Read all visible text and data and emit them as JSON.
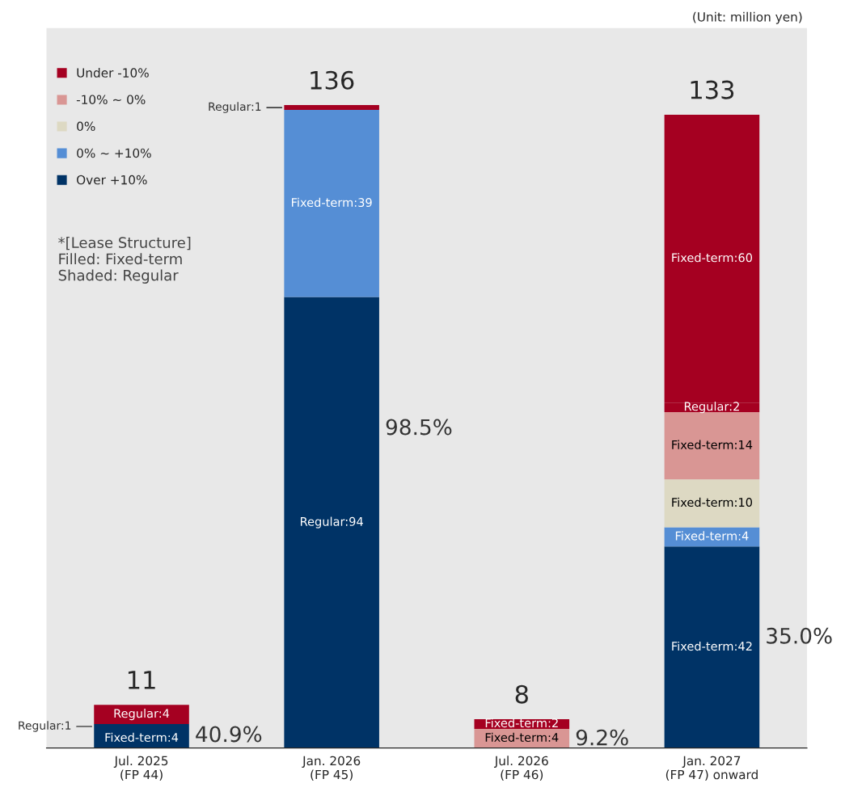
{
  "chart_data": {
    "type": "bar",
    "stacked": true,
    "categories": [
      "Jul. 2025\n(FP 44)",
      "Jan. 2026\n(FP 45)",
      "Jul. 2026\n(FP 46)",
      "Jan. 2027\n(FP 47) onward"
    ],
    "series": [
      {
        "name": "Over +10%",
        "color": "#003366",
        "values": [
          4,
          0,
          0,
          42
        ],
        "value_labels": [
          "Fixed-term:4",
          null,
          null,
          "Fixed-term:42"
        ]
      },
      {
        "color": "#003366",
        "values": [
          1,
          94,
          0,
          0
        ],
        "value_labels": [
          "Regular:1",
          "Regular:94",
          null,
          null
        ]
      },
      {
        "name": "0% ~ +10%",
        "color": "#558ed5",
        "values": [
          0,
          39,
          0,
          4
        ],
        "value_labels": [
          null,
          "Fixed-term:39",
          null,
          "Fixed-term:4"
        ]
      },
      {
        "name": "0%",
        "color": "#ddd9c3",
        "values": [
          0,
          0,
          0,
          10
        ],
        "value_labels": [
          null,
          null,
          null,
          "Fixed-term:10"
        ]
      },
      {
        "name": "-10% ~ 0%",
        "color": "#d99694",
        "values": [
          0,
          0,
          4,
          14
        ],
        "value_labels": [
          null,
          null,
          "Fixed-term:4",
          "Fixed-term:14"
        ]
      },
      {
        "name": "Under -10%",
        "color": "#a50021",
        "values": [
          4,
          1,
          0,
          2
        ],
        "value_labels": [
          "Regular:4",
          "Regular:1",
          null,
          "Regular:2"
        ]
      },
      {
        "color": "#a50021",
        "values": [
          0,
          0,
          2,
          60
        ],
        "value_labels": [
          null,
          null,
          "Fixed-term:2",
          "Fixed-term:60"
        ]
      }
    ],
    "totals": [
      "11",
      "136",
      "8",
      "133"
    ],
    "legend": "top left",
    "annotations": [
      "(Unit: million yen)",
      "*[Lease Structure]\nFilled: Fixed-term\nShaded: Regular",
      "40.9%",
      "98.5%",
      "9.2%",
      "35.0%"
    ]
  }
}
